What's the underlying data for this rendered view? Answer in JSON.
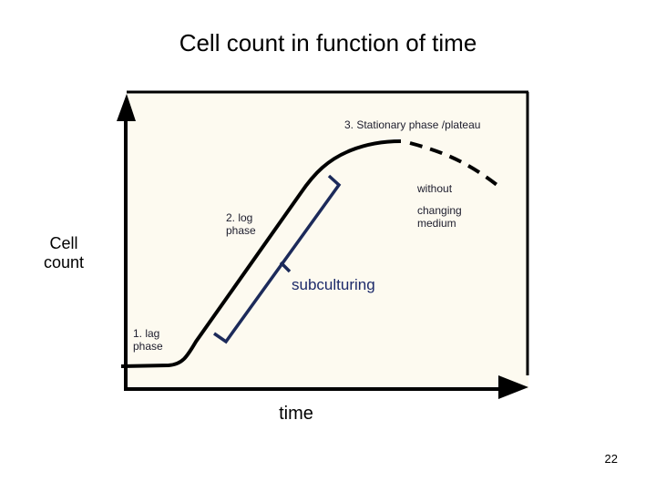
{
  "title": "Cell count in function of time",
  "y_label": "Cell count",
  "x_label": "time",
  "annotations": {
    "stationary": "3. Stationary phase /plateau",
    "without": "without",
    "changing": "changing medium",
    "log": "2. log phase",
    "subculturing": "subculturing",
    "lag": "1. lag phase"
  },
  "page_number": "22"
}
